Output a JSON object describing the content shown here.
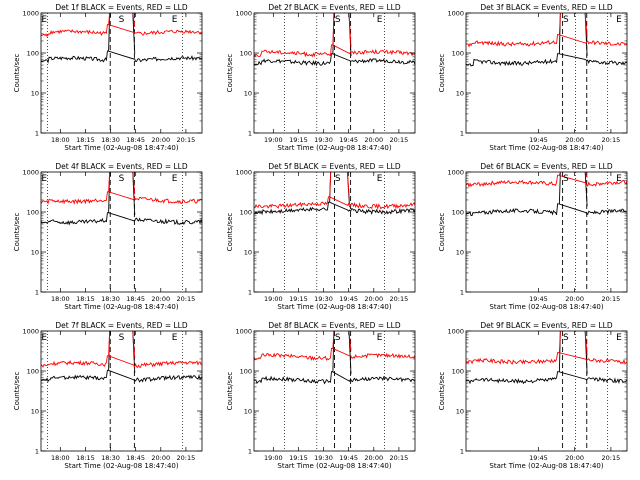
{
  "colors": {
    "events": "#000000",
    "lld": "#ff0000",
    "background": "#ffffff"
  },
  "shared_axes": {
    "xlabel": "Start Time (02-Aug-08 18:47:40)",
    "ylabel": "Counts/sec",
    "ylim": [
      1,
      1000
    ],
    "yscale": "log",
    "y_ticks": [
      1,
      10,
      100,
      1000
    ],
    "y_tick_labels": [
      "1",
      "10",
      "100",
      "1000"
    ]
  },
  "chart_data": [
    {
      "type": "line",
      "title": "Det 1f BLACK = Events, RED = LLD",
      "x_ticks": [
        "18:00",
        "18:15",
        "18:30",
        "18:45",
        "20:00",
        "20:15"
      ],
      "event_markers": [
        {
          "label": "E",
          "x": 0.02
        },
        {
          "label": "S",
          "x": 0.5
        },
        {
          "label": "E",
          "x": 0.83
        }
      ],
      "eclipse_lines": [
        0.04,
        0.88
      ],
      "saa_lines": [
        0.43,
        0.58
      ],
      "series": [
        {
          "name": "Events",
          "color": "#000000",
          "base": 70,
          "min_edge": 65,
          "spike_at": 0.42,
          "spike_end": 0.57
        },
        {
          "name": "LLD",
          "color": "#ff0000",
          "base": 320,
          "min_edge": 280,
          "spike_at": 0.42,
          "spike_end": 0.57
        }
      ]
    },
    {
      "type": "line",
      "title": "Det 2f BLACK = Events, RED = LLD",
      "x_ticks": [
        "19:00",
        "19:15",
        "19:30",
        "19:45",
        "20:00",
        "20:15"
      ],
      "event_markers": [
        {
          "label": "S",
          "x": 0.52
        },
        {
          "label": "E",
          "x": 0.78
        }
      ],
      "eclipse_lines": [
        0.19,
        0.39,
        0.81
      ],
      "saa_lines": [
        0.5,
        0.6
      ],
      "series": [
        {
          "name": "Events",
          "color": "#000000",
          "base": 60,
          "min_edge": 55,
          "spike_at": 0.49,
          "spike_end": 0.59
        },
        {
          "name": "LLD",
          "color": "#ff0000",
          "base": 100,
          "min_edge": 90,
          "spike_at": 0.49,
          "spike_end": 0.59
        }
      ]
    },
    {
      "type": "line",
      "title": "Det 3f BLACK = Events, RED = LLD",
      "x_ticks": [
        "19:45",
        "20:00",
        "20:15"
      ],
      "event_markers": [
        {
          "label": "S",
          "x": 0.62
        },
        {
          "label": "E",
          "x": 0.95
        }
      ],
      "eclipse_lines": [
        0.68,
        0.88
      ],
      "saa_lines": [
        0.6,
        0.75
      ],
      "series": [
        {
          "name": "Events",
          "color": "#000000",
          "base": 60,
          "min_edge": 50,
          "spike_at": 0.58,
          "spike_end": 0.74
        },
        {
          "name": "LLD",
          "color": "#ff0000",
          "base": 180,
          "min_edge": 160,
          "spike_at": 0.58,
          "spike_end": 0.74
        }
      ]
    },
    {
      "type": "line",
      "title": "Det 4f BLACK = Events, RED = LLD",
      "x_ticks": [
        "18:00",
        "18:15",
        "18:30",
        "18:45",
        "20:00",
        "20:15"
      ],
      "event_markers": [
        {
          "label": "E",
          "x": 0.02
        },
        {
          "label": "S",
          "x": 0.5
        },
        {
          "label": "E",
          "x": 0.83
        }
      ],
      "eclipse_lines": [
        0.04,
        0.88
      ],
      "saa_lines": [
        0.43,
        0.58
      ],
      "series": [
        {
          "name": "Events",
          "color": "#000000",
          "base": 60,
          "min_edge": 55,
          "spike_at": 0.42,
          "spike_end": 0.57
        },
        {
          "name": "LLD",
          "color": "#ff0000",
          "base": 200,
          "min_edge": 180,
          "spike_at": 0.42,
          "spike_end": 0.57
        }
      ]
    },
    {
      "type": "line",
      "title": "Det 5f BLACK = Events, RED = LLD",
      "x_ticks": [
        "19:00",
        "19:15",
        "19:30",
        "19:45",
        "20:00",
        "20:15"
      ],
      "event_markers": [
        {
          "label": "S",
          "x": 0.52
        },
        {
          "label": "E",
          "x": 0.78
        }
      ],
      "eclipse_lines": [
        0.19,
        0.39,
        0.81
      ],
      "saa_lines": [
        0.5,
        0.6
      ],
      "series": [
        {
          "name": "Events",
          "color": "#000000",
          "base": 110,
          "min_edge": 100,
          "spike_at": 0.47,
          "spike_end": 0.58
        },
        {
          "name": "LLD",
          "color": "#ff0000",
          "base": 150,
          "min_edge": 140,
          "spike_at": 0.47,
          "spike_end": 0.58
        }
      ]
    },
    {
      "type": "line",
      "title": "Det 6f BLACK = Events, RED = LLD",
      "x_ticks": [
        "19:45",
        "20:00",
        "20:15"
      ],
      "event_markers": [
        {
          "label": "S",
          "x": 0.62
        },
        {
          "label": "E",
          "x": 0.95
        }
      ],
      "eclipse_lines": [
        0.68,
        0.88
      ],
      "saa_lines": [
        0.6,
        0.75
      ],
      "series": [
        {
          "name": "Events",
          "color": "#000000",
          "base": 100,
          "min_edge": 90,
          "spike_at": 0.58,
          "spike_end": 0.74
        },
        {
          "name": "LLD",
          "color": "#ff0000",
          "base": 520,
          "min_edge": 480,
          "spike_at": 0.58,
          "spike_end": 0.74
        }
      ]
    },
    {
      "type": "line",
      "title": "Det 7f BLACK = Events, RED = LLD",
      "x_ticks": [
        "18:00",
        "18:15",
        "18:30",
        "18:45",
        "20:00",
        "20:15"
      ],
      "event_markers": [
        {
          "label": "E",
          "x": 0.02
        },
        {
          "label": "S",
          "x": 0.5
        },
        {
          "label": "E",
          "x": 0.83
        }
      ],
      "eclipse_lines": [
        0.04,
        0.88
      ],
      "saa_lines": [
        0.43,
        0.58
      ],
      "series": [
        {
          "name": "Events",
          "color": "#000000",
          "base": 65,
          "min_edge": 60,
          "spike_at": 0.42,
          "spike_end": 0.57
        },
        {
          "name": "LLD",
          "color": "#ff0000",
          "base": 150,
          "min_edge": 140,
          "spike_at": 0.42,
          "spike_end": 0.57
        }
      ]
    },
    {
      "type": "line",
      "title": "Det 8f BLACK = Events, RED = LLD",
      "x_ticks": [
        "19:00",
        "19:15",
        "19:30",
        "19:45",
        "20:00",
        "20:15"
      ],
      "event_markers": [
        {
          "label": "S",
          "x": 0.52
        },
        {
          "label": "E",
          "x": 0.78
        }
      ],
      "eclipse_lines": [
        0.19,
        0.39,
        0.81
      ],
      "saa_lines": [
        0.5,
        0.6
      ],
      "series": [
        {
          "name": "Events",
          "color": "#000000",
          "base": 60,
          "min_edge": 55,
          "spike_at": 0.49,
          "spike_end": 0.59
        },
        {
          "name": "LLD",
          "color": "#ff0000",
          "base": 230,
          "min_edge": 210,
          "spike_at": 0.49,
          "spike_end": 0.59
        }
      ]
    },
    {
      "type": "line",
      "title": "Det 9f BLACK = Events, RED = LLD",
      "x_ticks": [
        "19:45",
        "20:00",
        "20:15"
      ],
      "event_markers": [
        {
          "label": "S",
          "x": 0.62
        },
        {
          "label": "E",
          "x": 0.95
        }
      ],
      "eclipse_lines": [
        0.68,
        0.88
      ],
      "saa_lines": [
        0.6,
        0.75
      ],
      "series": [
        {
          "name": "Events",
          "color": "#000000",
          "base": 60,
          "min_edge": 55,
          "spike_at": 0.58,
          "spike_end": 0.74
        },
        {
          "name": "LLD",
          "color": "#ff0000",
          "base": 180,
          "min_edge": 165,
          "spike_at": 0.58,
          "spike_end": 0.74
        }
      ]
    }
  ]
}
